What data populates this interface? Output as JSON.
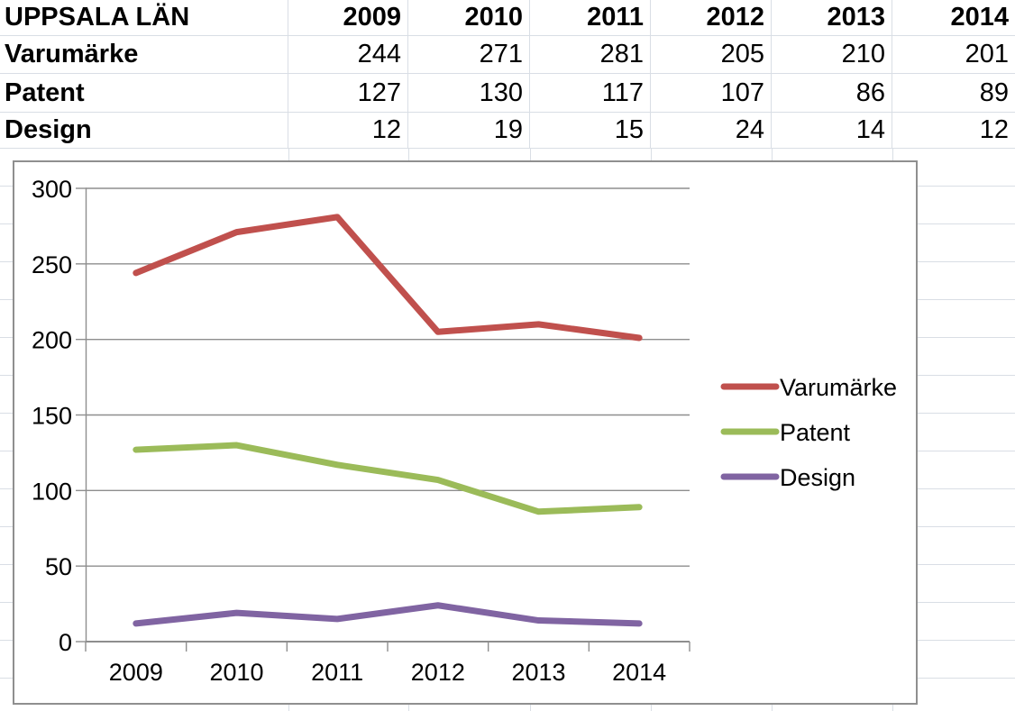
{
  "sheet": {
    "region_title": "UPPSALA LÄN"
  },
  "table": {
    "corner_label": "UPPSALA LÄN",
    "years": [
      "2009",
      "2010",
      "2011",
      "2012",
      "2013",
      "2014"
    ],
    "rows": [
      {
        "label": "Varumärke",
        "values": [
          "244",
          "271",
          "281",
          "205",
          "210",
          "201"
        ]
      },
      {
        "label": "Patent",
        "values": [
          "127",
          "130",
          "117",
          "107",
          "86",
          "89"
        ]
      },
      {
        "label": "Design",
        "values": [
          "12",
          "19",
          "15",
          "24",
          "14",
          "12"
        ]
      }
    ]
  },
  "chart_data": {
    "type": "line",
    "title": "",
    "xlabel": "",
    "ylabel": "",
    "categories": [
      "2009",
      "2010",
      "2011",
      "2012",
      "2013",
      "2014"
    ],
    "series": [
      {
        "name": "Varumärke",
        "color": "#C0504D",
        "values": [
          244,
          271,
          281,
          205,
          210,
          201
        ]
      },
      {
        "name": "Patent",
        "color": "#9BBB59",
        "values": [
          127,
          130,
          117,
          107,
          86,
          89
        ]
      },
      {
        "name": "Design",
        "color": "#8064A2",
        "values": [
          12,
          19,
          15,
          24,
          14,
          12
        ]
      }
    ],
    "ylim": [
      0,
      300
    ],
    "yticks": [
      0,
      50,
      100,
      150,
      200,
      250,
      300
    ],
    "grid": true,
    "legend_position": "right",
    "colors": {
      "gridline": "#8e8e8e",
      "axis": "#8e8e8e",
      "chart_border": "#8f8f8f",
      "sheet_gridline": "#d9dee5"
    }
  }
}
